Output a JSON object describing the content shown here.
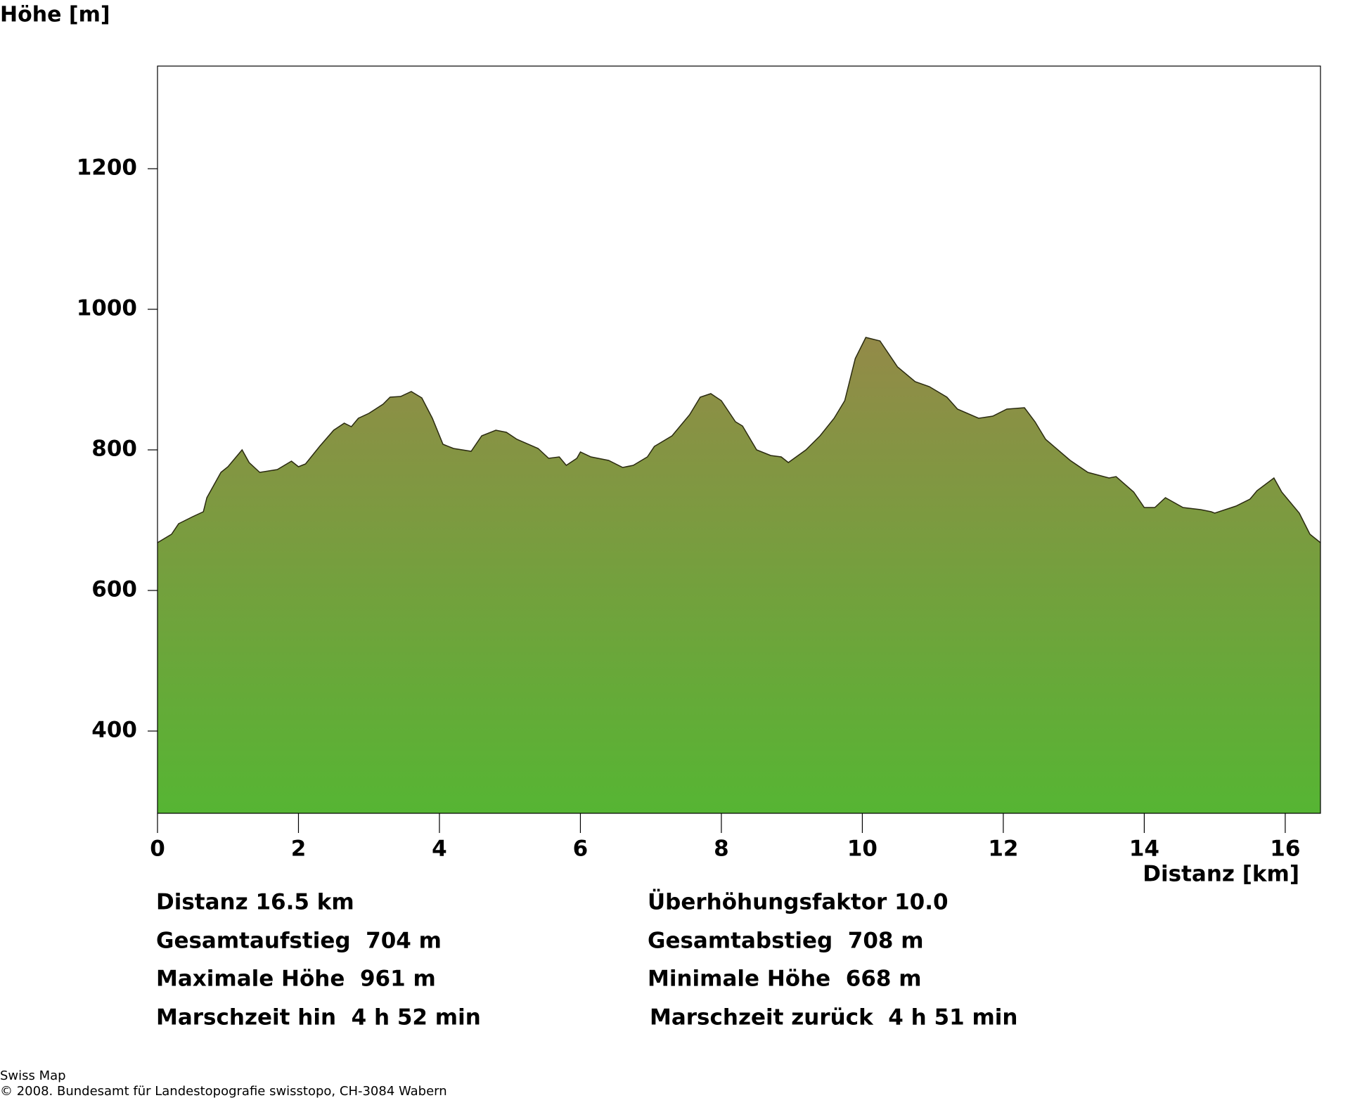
{
  "chart_data": {
    "type": "area",
    "title": "Höhe [m]",
    "x_label": "Distanz [km]",
    "x": [
      0,
      0.2,
      0.3,
      0.5,
      0.65,
      0.7,
      0.9,
      1.0,
      1.2,
      1.3,
      1.45,
      1.7,
      1.9,
      2.0,
      2.1,
      2.3,
      2.5,
      2.65,
      2.75,
      2.85,
      3.0,
      3.2,
      3.3,
      3.45,
      3.6,
      3.75,
      3.9,
      4.05,
      4.2,
      4.45,
      4.6,
      4.8,
      4.95,
      5.1,
      5.4,
      5.55,
      5.7,
      5.8,
      5.95,
      6.0,
      6.15,
      6.4,
      6.6,
      6.75,
      6.95,
      7.05,
      7.3,
      7.55,
      7.7,
      7.85,
      8.0,
      8.2,
      8.3,
      8.5,
      8.7,
      8.85,
      8.95,
      9.2,
      9.4,
      9.6,
      9.75,
      9.9,
      10.05,
      10.25,
      10.5,
      10.75,
      10.95,
      11.2,
      11.35,
      11.65,
      11.85,
      12.05,
      12.3,
      12.45,
      12.6,
      12.95,
      13.2,
      13.5,
      13.6,
      13.85,
      14.0,
      14.15,
      14.3,
      14.55,
      14.8,
      14.95,
      15.0,
      15.3,
      15.5,
      15.6,
      15.84,
      15.95,
      16.2,
      16.35,
      16.5
    ],
    "values": [
      668,
      680,
      695,
      705,
      712,
      732,
      768,
      776,
      800,
      782,
      768,
      772,
      784,
      776,
      780,
      805,
      828,
      838,
      833,
      845,
      852,
      865,
      875,
      876,
      883,
      874,
      845,
      808,
      802,
      798,
      820,
      828,
      825,
      815,
      802,
      788,
      790,
      778,
      788,
      797,
      790,
      785,
      775,
      778,
      790,
      805,
      820,
      850,
      875,
      880,
      870,
      840,
      834,
      800,
      792,
      790,
      782,
      800,
      820,
      845,
      870,
      930,
      960,
      955,
      918,
      897,
      890,
      875,
      858,
      845,
      848,
      858,
      860,
      840,
      815,
      785,
      768,
      760,
      762,
      740,
      718,
      718,
      732,
      718,
      715,
      712,
      710,
      720,
      730,
      742,
      760,
      740,
      710,
      680,
      668
    ],
    "color_top": "#938a48",
    "color_bottom": "#56b533",
    "line_color": "#2a2a10",
    "xlim": [
      0,
      16.5
    ],
    "ylim": [
      283,
      1346
    ],
    "xticks": [
      0,
      2,
      4,
      6,
      8,
      10,
      12,
      14,
      16
    ],
    "yticks": [
      400,
      600,
      800,
      1000,
      1200
    ]
  },
  "summary": {
    "left": [
      "Distanz 16.5 km",
      "Gesamtaufstieg  704 m",
      "Maximale Höhe  961 m",
      "Marschzeit hin  4 h 52 min"
    ],
    "right": [
      "Überhöhungsfaktor 10.0",
      "Gesamtabstieg  708 m",
      "Minimale Höhe  668 m",
      "Marschzeit zurück  4 h 51 min"
    ]
  },
  "footer": [
    "Swiss Map",
    "© 2008. Bundesamt für Landestopografie swisstopo, CH-3084 Wabern"
  ]
}
